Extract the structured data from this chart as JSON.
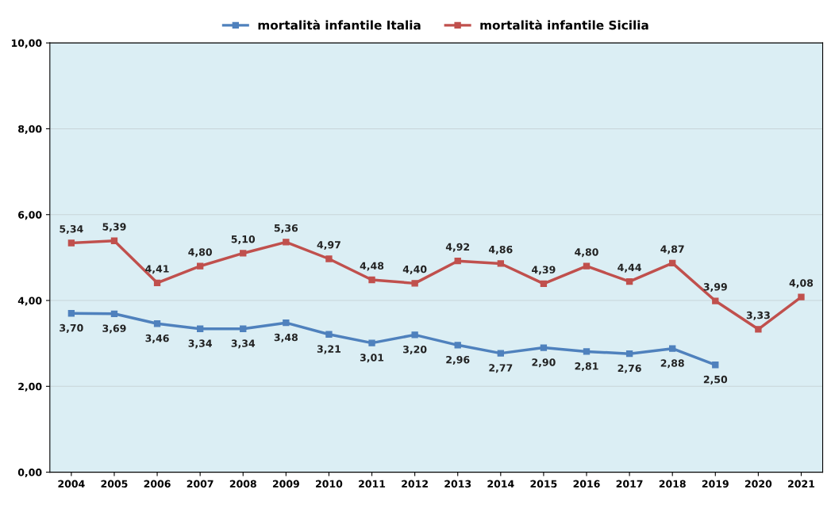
{
  "chart_data": {
    "type": "line",
    "categories": [
      "2004",
      "2005",
      "2006",
      "2007",
      "2008",
      "2009",
      "2010",
      "2011",
      "2012",
      "2013",
      "2014",
      "2015",
      "2016",
      "2017",
      "2018",
      "2019",
      "2020",
      "2021"
    ],
    "series": [
      {
        "name": "mortalità infantile Italia",
        "color": "#4f81bd",
        "values": [
          3.7,
          3.69,
          3.46,
          3.34,
          3.34,
          3.48,
          3.21,
          3.01,
          3.2,
          2.96,
          2.77,
          2.9,
          2.81,
          2.76,
          2.88,
          2.5,
          null,
          null
        ],
        "value_labels": [
          "3,70",
          "3,69",
          "3,46",
          "3,34",
          "3,34",
          "3,48",
          "3,21",
          "3,01",
          "3,20",
          "2,96",
          "2,77",
          "2,90",
          "2,81",
          "2,76",
          "2,88",
          "2,50",
          null,
          null
        ]
      },
      {
        "name": "mortalità infantile Sicilia",
        "color": "#c0504d",
        "values": [
          5.34,
          5.39,
          4.41,
          4.8,
          5.1,
          5.36,
          4.97,
          4.48,
          4.4,
          4.92,
          4.86,
          4.39,
          4.8,
          4.44,
          4.87,
          3.99,
          3.33,
          4.08
        ],
        "value_labels": [
          "5,34",
          "5,39",
          "4,41",
          "4,80",
          "5,10",
          "5,36",
          "4,97",
          "4,48",
          "4,40",
          "4,92",
          "4,86",
          "4,39",
          "4,80",
          "4,44",
          "4,87",
          "3,99",
          "3,33",
          "4,08"
        ]
      }
    ],
    "ylim": [
      0,
      10
    ],
    "yticks": [
      {
        "value": 0,
        "label": "0,00"
      },
      {
        "value": 2,
        "label": "2,00"
      },
      {
        "value": 4,
        "label": "4,00"
      },
      {
        "value": 6,
        "label": "6,00"
      },
      {
        "value": 8,
        "label": "8,00"
      },
      {
        "value": 10,
        "label": "10,00"
      }
    ],
    "grid": "y",
    "legend": "top",
    "marker": "square",
    "line_style": "solid"
  }
}
